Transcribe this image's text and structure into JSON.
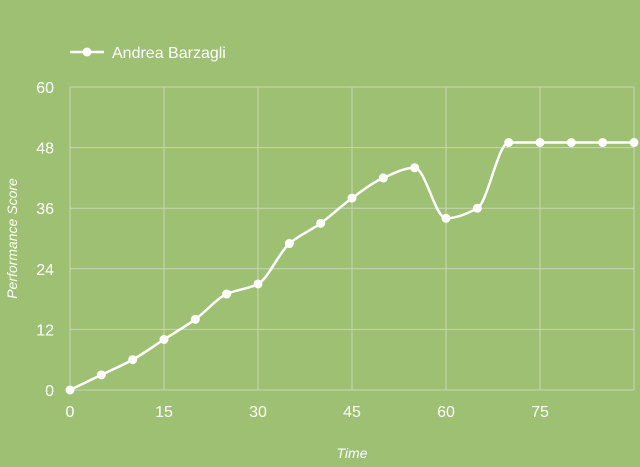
{
  "chart_data": {
    "type": "line",
    "title": "",
    "xlabel": "Time",
    "ylabel": "Performance Score",
    "xlim": [
      0,
      90
    ],
    "ylim": [
      0,
      60
    ],
    "x_ticks": [
      0,
      15,
      30,
      45,
      60,
      75
    ],
    "y_ticks": [
      0,
      12,
      24,
      36,
      48,
      60
    ],
    "grid": true,
    "legend_position": "top-left",
    "colors": {
      "background": "#9dc073",
      "grid": "#c9d6b7",
      "axis": "#c9d6b7",
      "line": "#ffffff",
      "text": "#ffffff"
    },
    "series": [
      {
        "name": "Andrea Barzagli",
        "smooth": true,
        "x": [
          0,
          5,
          10,
          15,
          20,
          25,
          30,
          35,
          40,
          45,
          50,
          55,
          60,
          65,
          70,
          75,
          80,
          85,
          90
        ],
        "y": [
          0,
          3,
          6,
          10,
          14,
          19,
          21,
          29,
          33,
          38,
          42,
          44,
          34,
          36,
          49,
          49,
          49,
          49,
          49
        ]
      }
    ]
  }
}
